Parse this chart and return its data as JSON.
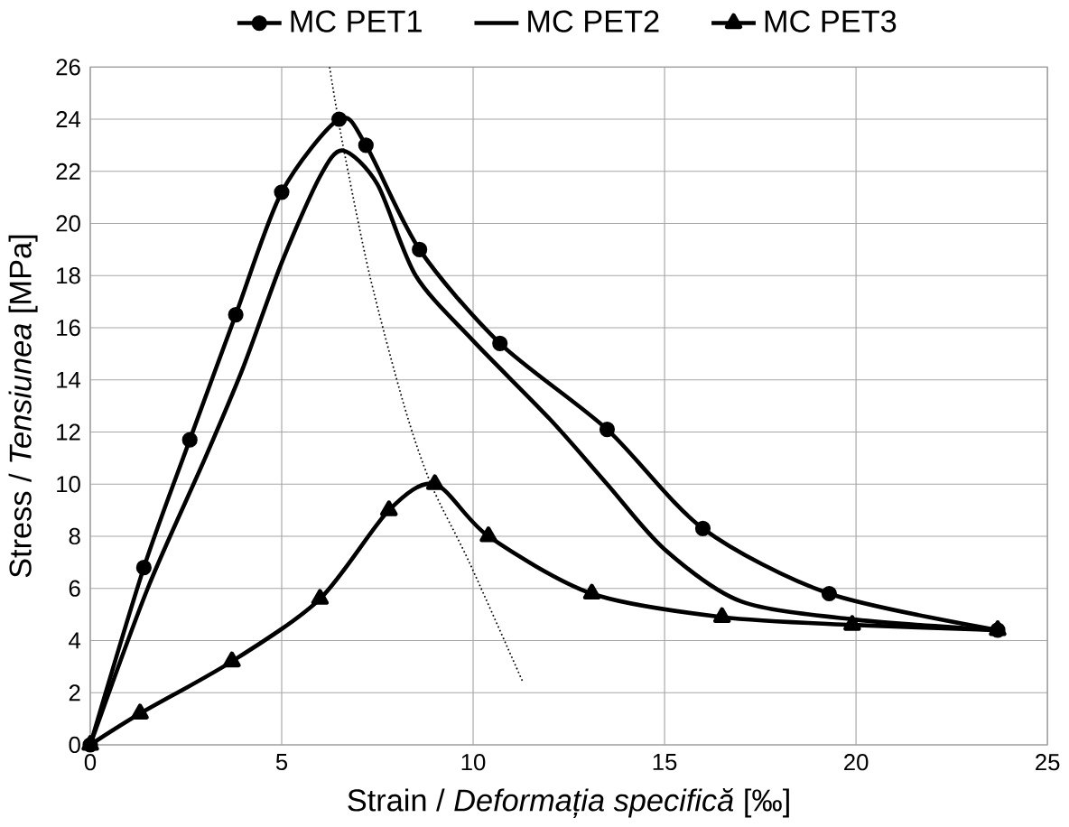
{
  "chart_data": {
    "type": "line",
    "xlabel": "Strain / *Deformația specifică*   [‰]",
    "ylabel": "Stress / *Tensiunea*   [MPa]",
    "xlim": [
      0,
      25
    ],
    "ylim": [
      0,
      26
    ],
    "xticks": [
      0,
      5,
      10,
      15,
      20,
      25
    ],
    "yticks": [
      0,
      2,
      4,
      6,
      8,
      10,
      12,
      14,
      16,
      18,
      20,
      22,
      24,
      26
    ],
    "grid": true,
    "legend": "top",
    "series": [
      {
        "name": "MC PET1",
        "color": "#000000",
        "marker": "circle",
        "line_style": "solid",
        "x": [
          0,
          1.4,
          2.6,
          3.8,
          5.0,
          6.5,
          7.2,
          8.6,
          10.7,
          13.5,
          16.0,
          19.3,
          23.7
        ],
        "values": [
          0,
          6.8,
          11.7,
          16.5,
          21.2,
          24.0,
          23.0,
          19.0,
          15.4,
          12.1,
          8.3,
          5.8,
          4.4
        ]
      },
      {
        "name": "MC PET2",
        "color": "#000000",
        "marker": "none",
        "line_style": "solid",
        "x": [
          0,
          1.5,
          3,
          4,
          5,
          6,
          6.6,
          7.5,
          8.5,
          10,
          12,
          13.5,
          15,
          17,
          20,
          23.7
        ],
        "values": [
          0,
          6,
          11,
          14.5,
          18.5,
          21.8,
          22.8,
          21.5,
          18,
          15.5,
          12.5,
          10,
          7.5,
          5.5,
          4.8,
          4.4
        ]
      },
      {
        "name": "MC PET3",
        "color": "#000000",
        "marker": "triangle",
        "line_style": "solid",
        "x": [
          0,
          1.3,
          3.7,
          6.0,
          7.8,
          9,
          10.4,
          13.1,
          16.5,
          19.9,
          23.7
        ],
        "values": [
          0,
          1.2,
          3.2,
          5.6,
          9.0,
          10,
          8.0,
          5.8,
          4.9,
          4.6,
          4.4
        ]
      },
      {
        "color": "#000000",
        "marker": "none",
        "line_style": "dotted",
        "x": [
          6.25,
          6.6,
          7.3,
          8.2,
          8.9,
          9.9,
          11.3
        ],
        "values": [
          26,
          23,
          18,
          13,
          10,
          7,
          2.4
        ]
      }
    ]
  }
}
